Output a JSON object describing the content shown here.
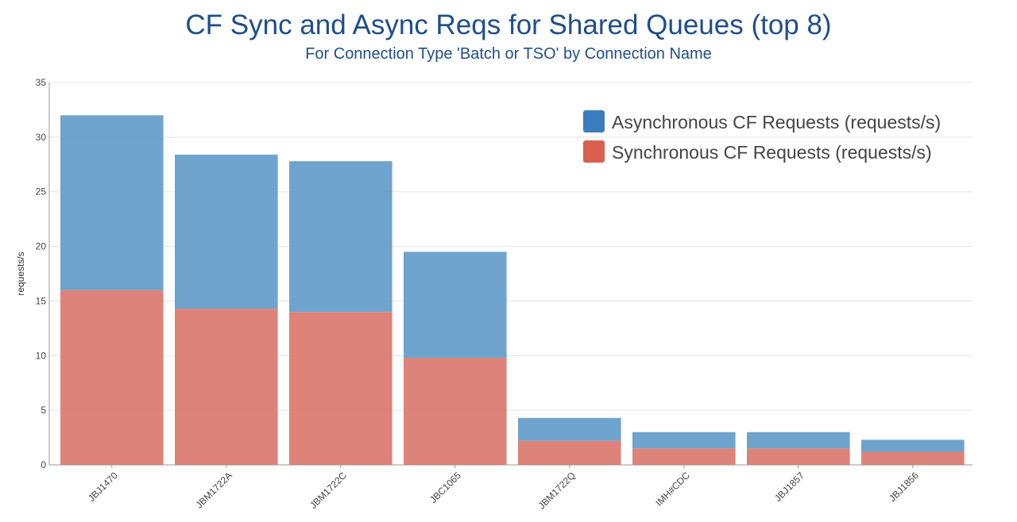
{
  "chart_data": {
    "type": "bar",
    "stacked": true,
    "title": "CF Sync and Async Reqs for Shared Queues (top 8)",
    "subtitle": "For Connection Type 'Batch or TSO' by Connection Name",
    "xlabel": "",
    "ylabel": "requests/s",
    "ylim": [
      0,
      35
    ],
    "yticks": [
      0,
      5,
      10,
      15,
      20,
      25,
      30,
      35
    ],
    "grid": true,
    "legend_position": "top-right",
    "categories": [
      "JBJ1470",
      "JBM1722A",
      "JBM1722C",
      "JBC1065",
      "JBM1722Q",
      "IMH#CDC",
      "JBJ1857",
      "JBJ1856"
    ],
    "series": [
      {
        "name": "Synchronous CF Requests (requests/s)",
        "color": "#d9756a",
        "values": [
          16.0,
          14.3,
          14.0,
          9.8,
          2.2,
          1.5,
          1.5,
          1.2
        ]
      },
      {
        "name": "Asynchronous CF Requests (requests/s)",
        "color": "#5f9ac9",
        "values": [
          16.0,
          14.1,
          13.8,
          9.7,
          2.1,
          1.5,
          1.5,
          1.1
        ]
      }
    ],
    "legend": [
      {
        "name": "Asynchronous CF Requests (requests/s)",
        "color": "#3a7ebf"
      },
      {
        "name": "Synchronous CF Requests (requests/s)",
        "color": "#d9604f"
      }
    ]
  }
}
